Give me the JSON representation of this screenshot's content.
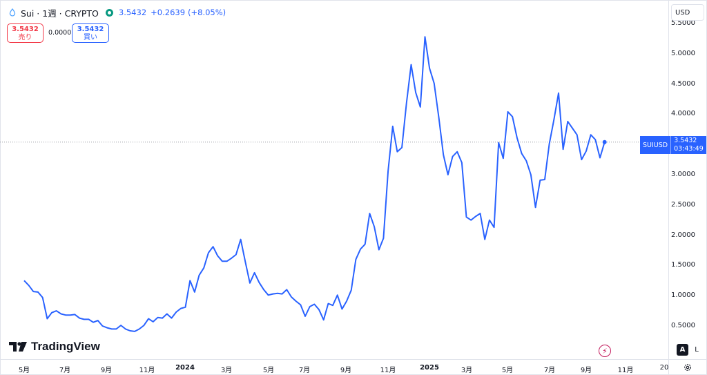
{
  "header": {
    "symbol_text": "Sui · 1週 · CRYPTO",
    "price": "3.5432",
    "change": "+0.2639",
    "change_pct": "(+8.05%)"
  },
  "trade": {
    "sell_value": "3.5432",
    "sell_label": "売り",
    "spread": "0.0000",
    "buy_value": "3.5432",
    "buy_label": "買い"
  },
  "currency": "USD",
  "last_label": {
    "ticker": "SUIUSD",
    "value": "3.5432",
    "countdown": "03:43:49"
  },
  "logo_text": "TradingView",
  "controls": {
    "auto": "A",
    "log": "L"
  },
  "colors": {
    "line": "#2962ff",
    "accent": "#2962ff",
    "sell": "#f23645",
    "status": "#089981"
  },
  "chart_data": {
    "type": "line",
    "title": "",
    "xlabel": "",
    "ylabel": "",
    "ylim": [
      0,
      5.5
    ],
    "x_tick_labels": [
      "5月",
      "7月",
      "9月",
      "11月",
      "2024",
      "3月",
      "5月",
      "7月",
      "9月",
      "11月",
      "2025",
      "3月",
      "5月",
      "7月",
      "9月",
      "11月",
      "20"
    ],
    "y_tick_labels": [
      "5.5000",
      "5.0000",
      "4.5000",
      "4.0000",
      "3.5000",
      "3.0000",
      "2.5000",
      "2.0000",
      "1.5000",
      "1.0000",
      "0.5000"
    ],
    "grid": false,
    "series": [
      {
        "name": "SUIUSD",
        "x": [
          "2023-05-01",
          "2023-05-08",
          "2023-05-15",
          "2023-05-22",
          "2023-05-29",
          "2023-06-05",
          "2023-06-12",
          "2023-06-19",
          "2023-06-26",
          "2023-07-03",
          "2023-07-10",
          "2023-07-17",
          "2023-07-24",
          "2023-07-31",
          "2023-08-07",
          "2023-08-14",
          "2023-08-21",
          "2023-08-28",
          "2023-09-04",
          "2023-09-11",
          "2023-09-18",
          "2023-09-25",
          "2023-10-02",
          "2023-10-09",
          "2023-10-16",
          "2023-10-23",
          "2023-10-30",
          "2023-11-06",
          "2023-11-13",
          "2023-11-20",
          "2023-11-27",
          "2023-12-04",
          "2023-12-11",
          "2023-12-18",
          "2023-12-25",
          "2024-01-01",
          "2024-01-08",
          "2024-01-15",
          "2024-01-22",
          "2024-01-29",
          "2024-02-05",
          "2024-02-12",
          "2024-02-19",
          "2024-02-26",
          "2024-03-04",
          "2024-03-11",
          "2024-03-18",
          "2024-03-25",
          "2024-04-01",
          "2024-04-08",
          "2024-04-15",
          "2024-04-22",
          "2024-04-29",
          "2024-05-06",
          "2024-05-13",
          "2024-05-20",
          "2024-05-27",
          "2024-06-03",
          "2024-06-10",
          "2024-06-17",
          "2024-06-24",
          "2024-07-01",
          "2024-07-08",
          "2024-07-15",
          "2024-07-22",
          "2024-07-29",
          "2024-08-05",
          "2024-08-12",
          "2024-08-19",
          "2024-08-26",
          "2024-09-02",
          "2024-09-09",
          "2024-09-16",
          "2024-09-23",
          "2024-09-30",
          "2024-10-07",
          "2024-10-14",
          "2024-10-21",
          "2024-10-28",
          "2024-11-04",
          "2024-11-11",
          "2024-11-18",
          "2024-11-25",
          "2024-12-02",
          "2024-12-09",
          "2024-12-16",
          "2024-12-23",
          "2024-12-30",
          "2025-01-06",
          "2025-01-13",
          "2025-01-20",
          "2025-01-27",
          "2025-02-03",
          "2025-02-10",
          "2025-02-17",
          "2025-02-24",
          "2025-03-03",
          "2025-03-10",
          "2025-03-17",
          "2025-03-24",
          "2025-03-31",
          "2025-04-07",
          "2025-04-14",
          "2025-04-21",
          "2025-04-28",
          "2025-05-05",
          "2025-05-12",
          "2025-05-19",
          "2025-05-26",
          "2025-06-02",
          "2025-06-09",
          "2025-06-16",
          "2025-06-23",
          "2025-06-30",
          "2025-07-07",
          "2025-07-14",
          "2025-07-21",
          "2025-07-28",
          "2025-08-04",
          "2025-08-11",
          "2025-08-18",
          "2025-08-25",
          "2025-09-01",
          "2025-09-08",
          "2025-09-15",
          "2025-09-22",
          "2025-09-29"
        ],
        "values": [
          1.25,
          1.17,
          1.07,
          1.06,
          0.97,
          0.62,
          0.72,
          0.75,
          0.7,
          0.68,
          0.68,
          0.69,
          0.63,
          0.61,
          0.61,
          0.56,
          0.59,
          0.5,
          0.47,
          0.45,
          0.45,
          0.51,
          0.45,
          0.42,
          0.41,
          0.45,
          0.51,
          0.62,
          0.57,
          0.64,
          0.63,
          0.7,
          0.63,
          0.73,
          0.79,
          0.81,
          1.25,
          1.06,
          1.34,
          1.46,
          1.71,
          1.81,
          1.66,
          1.57,
          1.57,
          1.62,
          1.68,
          1.93,
          1.56,
          1.21,
          1.38,
          1.22,
          1.1,
          1.01,
          1.03,
          1.04,
          1.03,
          1.1,
          0.98,
          0.91,
          0.85,
          0.66,
          0.82,
          0.86,
          0.77,
          0.6,
          0.87,
          0.84,
          1.01,
          0.78,
          0.91,
          1.09,
          1.6,
          1.77,
          1.85,
          2.36,
          2.14,
          1.76,
          1.95,
          3.06,
          3.8,
          3.38,
          3.45,
          4.19,
          4.82,
          4.36,
          4.12,
          5.28,
          4.76,
          4.51,
          3.95,
          3.33,
          3.0,
          3.3,
          3.38,
          3.2,
          2.3,
          2.25,
          2.31,
          2.36,
          1.93,
          2.25,
          2.13,
          3.53,
          3.27,
          4.04,
          3.96,
          3.61,
          3.35,
          3.23,
          3.0,
          2.46,
          2.91,
          2.92,
          3.51,
          3.91,
          4.35,
          3.42,
          3.88,
          3.77,
          3.66,
          3.25,
          3.39,
          3.66,
          3.58,
          3.28,
          3.54
        ]
      }
    ]
  }
}
